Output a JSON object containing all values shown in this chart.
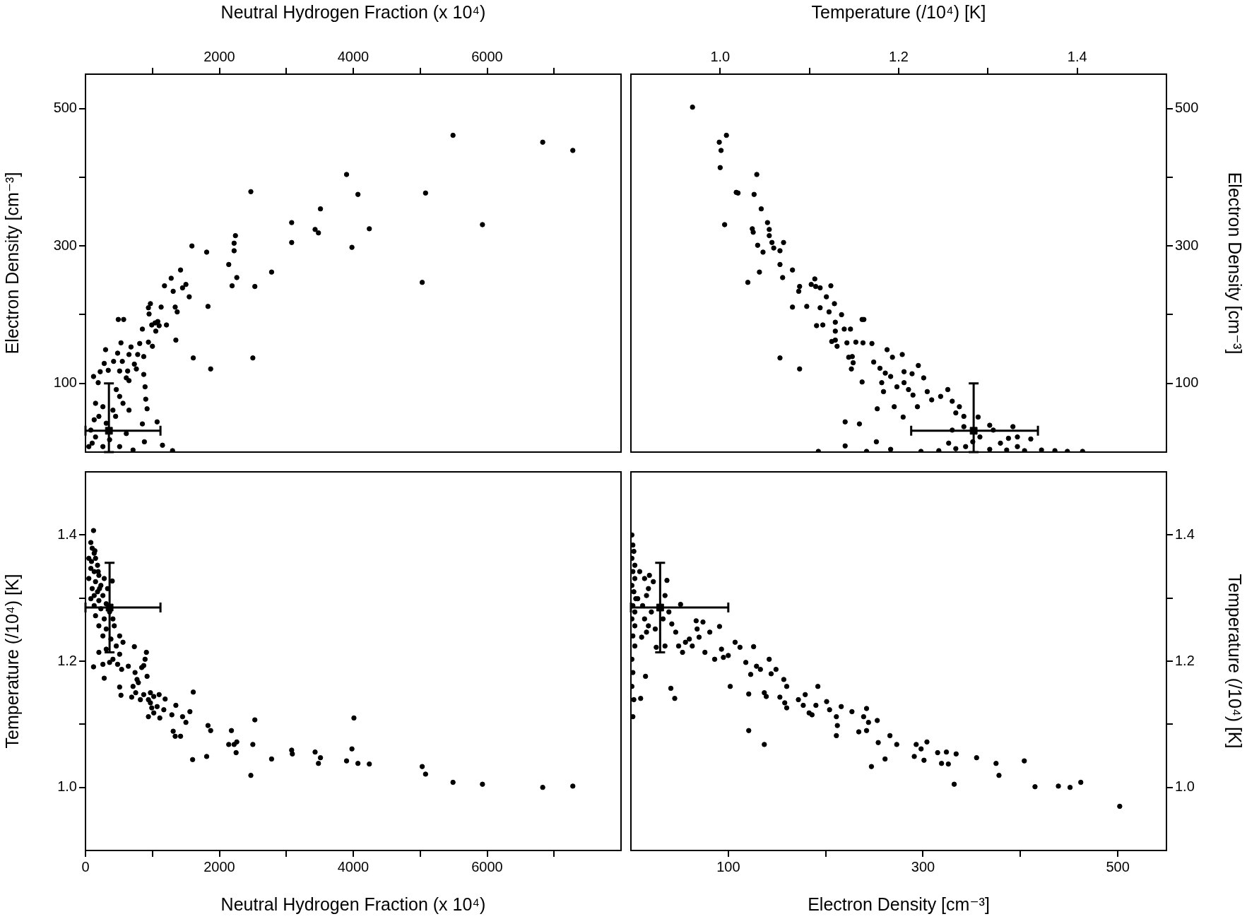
{
  "chart_data": [
    {
      "type": "scatter",
      "xlabel": "Neutral Hydrogen Fraction (x 10⁴)",
      "ylabel": "Electron Density [cm⁻³]",
      "xlim": [
        0,
        8000
      ],
      "xticks": [
        {
          "value": 1000,
          "label": null
        },
        2000,
        {
          "value": 3000,
          "label": null
        },
        4000,
        {
          "value": 5000,
          "label": null
        },
        6000,
        {
          "value": 7000,
          "label": null
        }
      ],
      "ylim": [
        0,
        550
      ],
      "yticks": [
        100,
        {
          "value": 200,
          "label": null
        },
        300,
        {
          "value": 400,
          "label": null
        },
        500
      ],
      "series": [
        {
          "color": "#000000",
          "marker": "circle",
          "x": [
            5490,
            6830,
            7280,
            3900,
            2470,
            4070,
            5080,
            3510,
            3080,
            5930,
            3430,
            3480,
            4240,
            1590,
            1810,
            2240,
            2220,
            2220,
            3080,
            3980,
            2140,
            2780,
            1420,
            1280,
            1180,
            1310,
            1450,
            1500,
            1550,
            2190,
            2260,
            2530,
            5030,
            970,
            940,
            950,
            1130,
            1340,
            1370,
            1830,
            990,
            1040,
            1080,
            1100,
            1050,
            1210,
            850,
            490,
            570,
            1350,
            810,
            940,
            1000,
            530,
            680,
            780,
            650,
            870,
            730,
            760,
            1610,
            2500,
            1870,
            550,
            480,
            420,
            300,
            280,
            220,
            340,
            510,
            630,
            610,
            650,
            870,
            890,
            900,
            920,
            650,
            850,
            1070,
            880,
            1150,
            1300,
            120,
            190,
            150,
            260,
            200,
            310,
            410,
            510,
            460,
            560,
            450,
            50,
            100,
            150,
            260,
            360,
            510,
            710,
            610,
            80,
            130
          ],
          "values": [
            461,
            451,
            439,
            404,
            379,
            375,
            377,
            354,
            334,
            331,
            324,
            319,
            325,
            300,
            291,
            315,
            304,
            293,
            305,
            298,
            273,
            262,
            265,
            253,
            242,
            234,
            239,
            244,
            226,
            242,
            254,
            241,
            247,
            216,
            210,
            201,
            211,
            211,
            204,
            212,
            185,
            188,
            190,
            184,
            176,
            185,
            179,
            193,
            193,
            163,
            158,
            160,
            154,
            159,
            153,
            142,
            142,
            139,
            128,
            121,
            137,
            137,
            121,
            132,
            144,
            132,
            149,
            129,
            117,
            119,
            118,
            118,
            108,
            104,
            113,
            95,
            77,
            63,
            61,
            41,
            44,
            15,
            10,
            2,
            110,
            101,
            71,
            66,
            52,
            42,
            61,
            81,
            91,
            71,
            52,
            8,
            13,
            22,
            8,
            18,
            8,
            3,
            27,
            32,
            47
          ]
        },
        {
          "color": "#000000",
          "marker": "square",
          "x": [
            350
          ],
          "values": [
            31
          ],
          "errors": [
            [
              0,
              100
            ]
          ],
          "xerrors": [
            [
              0,
              1120
            ]
          ]
        }
      ]
    },
    {
      "type": "scatter",
      "xlabel": "Temperature (/10⁴) [K]",
      "ylabel": "Electron Density [cm⁻³]",
      "xlim": [
        0.9,
        1.5
      ],
      "xticks": [
        {
          "value": 1.0,
          "label": "1.0"
        },
        {
          "value": 1.1,
          "label": null
        },
        1.2,
        {
          "value": 1.3,
          "label": null
        },
        1.4
      ],
      "ylim": [
        0,
        550
      ],
      "yticks": [
        100,
        {
          "value": 200,
          "label": null
        },
        300,
        {
          "value": 400,
          "label": null
        },
        500
      ],
      "series": [
        {
          "color": "#000000",
          "marker": "circle",
          "x": [
            0.969,
            0.999,
            1.001,
            1.0,
            1.007,
            1.041,
            1.005,
            1.018,
            1.02,
            1.038,
            1.046,
            1.036,
            1.037,
            1.053,
            1.055,
            1.055,
            1.042,
            1.048,
            1.058,
            1.06,
            1.067,
            1.071,
            1.067,
            1.07,
            1.044,
            1.031,
            1.081,
            1.088,
            1.089,
            1.081,
            1.097,
            1.102,
            1.106,
            1.107,
            1.112,
            1.112,
            1.108,
            1.115,
            1.119,
            1.124,
            1.128,
            1.122,
            1.129,
            1.129,
            1.136,
            1.125,
            1.129,
            1.131,
            1.139,
            1.146,
            1.142,
            1.152,
            1.144,
            1.148,
            1.149,
            1.147,
            1.159,
            1.161,
            1.16,
            1.17,
            1.159,
            1.067,
            1.089,
            1.14,
            1.156,
            1.14,
            1.176,
            1.175,
            1.172,
            1.179,
            1.185,
            1.191,
            1.181,
            1.183,
            1.187,
            1.193,
            1.204,
            1.206,
            1.198,
            1.206,
            1.211,
            1.215,
            1.222,
            1.228,
            1.195,
            1.205,
            1.216,
            1.221,
            1.232,
            1.237,
            1.247,
            1.255,
            1.26,
            1.264,
            1.268,
            1.273,
            1.289,
            1.302,
            1.306,
            1.328,
            1.323,
            1.333,
            1.348,
            1.225,
            1.245,
            1.264,
            1.275,
            1.302,
            1.321,
            1.341,
            1.36,
            1.375,
            1.389,
            1.406,
            1.11,
            1.164,
            1.191,
            1.26,
            1.273,
            1.291,
            1.283,
            1.256,
            1.314,
            1.333
          ],
          "values": [
            502,
            451,
            439,
            414,
            461,
            404,
            331,
            378,
            377,
            375,
            354,
            325,
            320,
            334,
            324,
            315,
            301,
            291,
            305,
            297,
            293,
            305,
            273,
            254,
            262,
            247,
            265,
            234,
            241,
            211,
            212,
            244,
            252,
            241,
            239,
            210,
            184,
            185,
            226,
            242,
            216,
            204,
            189,
            176,
            200,
            161,
            163,
            154,
            179,
            179,
            159,
            160,
            138,
            139,
            130,
            121,
            193,
            193,
            159,
            158,
            102,
            137,
            121,
            44,
            41,
            9,
            63,
            15,
            131,
            122,
            115,
            110,
            101,
            88,
            149,
            138,
            142,
            117,
            95,
            101,
            91,
            114,
            126,
            108,
            66,
            51,
            83,
            66,
            88,
            76,
            81,
            91,
            74,
            57,
            66,
            52,
            51,
            39,
            32,
            37,
            20,
            22,
            19,
            1,
            2,
            5,
            8,
            4,
            3,
            2,
            3,
            2,
            1,
            1,
            1,
            1,
            4,
            32,
            37,
            22,
            15,
            13,
            13,
            8
          ]
        },
        {
          "color": "#000000",
          "marker": "square",
          "x": [
            1.284
          ],
          "values": [
            31
          ],
          "errors": [
            [
              0,
              100
            ]
          ],
          "xerrors": [
            [
              1.214,
              1.356
            ]
          ]
        }
      ]
    },
    {
      "type": "scatter",
      "xlabel": "Neutral Hydrogen Fraction (x 10⁴)",
      "ylabel": "Temperature (/10⁴) [K]",
      "xlim": [
        0,
        8000
      ],
      "xticks": [
        0,
        {
          "value": 1000,
          "label": null
        },
        2000,
        {
          "value": 3000,
          "label": null
        },
        4000,
        {
          "value": 5000,
          "label": null
        },
        6000,
        {
          "value": 7000,
          "label": null
        }
      ],
      "ylim": [
        0.9,
        1.5
      ],
      "yticks": [
        {
          "value": 1.0,
          "label": "1.0"
        },
        {
          "value": 1.1,
          "label": null
        },
        1.2,
        {
          "value": 1.3,
          "label": null
        },
        1.4
      ],
      "series": [
        {
          "color": "#000000",
          "marker": "circle",
          "x": [
            120,
            80,
            100,
            130,
            150,
            50,
            180,
            80,
            130,
            200,
            50,
            150,
            230,
            100,
            180,
            260,
            80,
            200,
            310,
            130,
            230,
            360,
            150,
            280,
            410,
            200,
            310,
            430,
            260,
            380,
            510,
            90,
            140,
            190,
            210,
            130,
            280,
            330,
            400,
            120,
            280,
            200,
            310,
            460,
            560,
            730,
            510,
            410,
            260,
            360,
            480,
            540,
            640,
            740,
            870,
            890,
            910,
            840,
            920,
            770,
            790,
            710,
            510,
            530,
            690,
            750,
            820,
            870,
            970,
            940,
            1020,
            1100,
            1190,
            970,
            990,
            1070,
            1020,
            940,
            1110,
            1170,
            1290,
            1350,
            1450,
            1500,
            1560,
            1610,
            1310,
            1340,
            1420,
            1830,
            1870,
            1600,
            1810,
            2140,
            2180,
            2220,
            2250,
            2260,
            2500,
            2530,
            2470,
            2780,
            3080,
            3090,
            3430,
            3480,
            3510,
            3900,
            4010,
            3980,
            4070,
            4240,
            5030,
            5080,
            5490,
            5930,
            6830,
            7280
          ],
          "values": [
            1.407,
            1.388,
            1.379,
            1.371,
            1.363,
            1.363,
            1.352,
            1.347,
            1.342,
            1.336,
            1.331,
            1.326,
            1.32,
            1.315,
            1.31,
            1.304,
            1.299,
            1.296,
            1.291,
            1.288,
            1.283,
            1.278,
            1.272,
            1.267,
            1.267,
            1.256,
            1.251,
            1.256,
            1.24,
            1.235,
            1.24,
            1.358,
            1.375,
            1.342,
            1.315,
            1.304,
            1.331,
            1.315,
            1.327,
            1.191,
            1.173,
            1.214,
            1.219,
            1.224,
            1.23,
            1.223,
            1.211,
            1.203,
            1.195,
            1.198,
            1.195,
            1.187,
            1.192,
            1.182,
            1.193,
            1.203,
            1.214,
            1.19,
            1.176,
            1.171,
            1.166,
            1.16,
            1.159,
            1.146,
            1.143,
            1.15,
            1.139,
            1.147,
            1.15,
            1.139,
            1.144,
            1.147,
            1.14,
            1.134,
            1.126,
            1.128,
            1.118,
            1.112,
            1.11,
            1.123,
            1.115,
            1.13,
            1.112,
            1.103,
            1.12,
            1.151,
            1.089,
            1.081,
            1.081,
            1.098,
            1.09,
            1.044,
            1.049,
            1.068,
            1.09,
            1.068,
            1.055,
            1.072,
            1.068,
            1.107,
            1.019,
            1.045,
            1.059,
            1.053,
            1.056,
            1.038,
            1.047,
            1.042,
            1.11,
            1.061,
            1.038,
            1.037,
            1.033,
            1.021,
            1.008,
            1.005,
            1.0,
            1.002
          ]
        },
        {
          "color": "#000000",
          "marker": "square",
          "x": [
            360
          ],
          "values": [
            1.285
          ],
          "errors": [
            [
              1.214,
              1.356
            ]
          ],
          "xerrors": [
            [
              0,
              1120
            ]
          ]
        }
      ]
    },
    {
      "type": "scatter",
      "xlabel": "Electron Density [cm⁻³]",
      "ylabel": "Temperature (/10⁴) [K]",
      "xlim": [
        0,
        550
      ],
      "xticks": [
        100,
        {
          "value": 200,
          "label": null
        },
        300,
        {
          "value": 400,
          "label": null
        },
        500
      ],
      "ylim": [
        0.9,
        1.5
      ],
      "yticks": [
        {
          "value": 1.0,
          "label": "1.0"
        },
        {
          "value": 1.1,
          "label": null
        },
        1.2,
        {
          "value": 1.3,
          "label": null
        },
        1.4
      ],
      "series": [
        {
          "color": "#000000",
          "marker": "circle",
          "x": [
            1,
            2,
            3,
            1,
            4,
            2,
            4,
            1,
            3,
            5,
            2,
            4,
            1,
            4,
            2,
            4,
            1,
            2,
            1,
            3,
            2,
            9,
            14,
            19,
            18,
            16,
            7,
            23,
            12,
            21,
            14,
            18,
            25,
            37,
            35,
            39,
            33,
            26,
            35,
            16,
            11,
            15,
            10,
            41,
            45,
            51,
            42,
            46,
            49,
            53,
            56,
            60,
            63,
            67,
            68,
            74,
            70,
            76,
            81,
            86,
            91,
            93,
            95,
            100,
            102,
            107,
            112,
            118,
            123,
            126,
            121,
            129,
            133,
            142,
            144,
            149,
            137,
            139,
            121,
            137,
            153,
            157,
            160,
            158,
            160,
            172,
            177,
            179,
            183,
            186,
            190,
            192,
            201,
            204,
            211,
            212,
            211,
            216,
            227,
            234,
            239,
            242,
            242,
            244,
            247,
            253,
            254,
            261,
            266,
            273,
            291,
            293,
            298,
            304,
            301,
            315,
            319,
            324,
            326,
            332,
            334,
            355,
            375,
            378,
            404,
            415,
            439,
            451,
            462,
            502
          ],
          "values": [
            1.4,
            1.384,
            1.374,
            1.363,
            1.352,
            1.342,
            1.331,
            1.32,
            1.31,
            1.299,
            1.288,
            1.278,
            1.267,
            1.256,
            1.24,
            1.224,
            1.203,
            1.182,
            1.16,
            1.139,
            1.112,
            1.342,
            1.331,
            1.336,
            1.315,
            1.304,
            1.299,
            1.326,
            1.288,
            1.278,
            1.267,
            1.256,
            1.251,
            1.328,
            1.304,
            1.278,
            1.267,
            1.222,
            1.224,
            1.246,
            1.238,
            1.176,
            1.141,
            1.157,
            1.141,
            1.29,
            1.259,
            1.246,
            1.224,
            1.214,
            1.23,
            1.235,
            1.224,
            1.264,
            1.251,
            1.262,
            1.238,
            1.214,
            1.246,
            1.203,
            1.255,
            1.219,
            1.206,
            1.209,
            1.16,
            1.23,
            1.222,
            1.198,
            1.179,
            1.223,
            1.148,
            1.192,
            1.187,
            1.203,
            1.18,
            1.187,
            1.15,
            1.144,
            1.09,
            1.068,
            1.143,
            1.171,
            1.16,
            1.134,
            1.126,
            1.139,
            1.13,
            1.147,
            1.118,
            1.115,
            1.13,
            1.16,
            1.136,
            1.123,
            1.112,
            1.098,
            1.082,
            1.128,
            1.12,
            1.088,
            1.112,
            1.125,
            1.09,
            1.103,
            1.033,
            1.106,
            1.071,
            1.045,
            1.082,
            1.068,
            1.049,
            1.068,
            1.061,
            1.072,
            1.043,
            1.055,
            1.038,
            1.056,
            1.037,
            1.005,
            1.053,
            1.047,
            1.038,
            1.019,
            1.042,
            1.001,
            1.002,
            1.0,
            1.008,
            0.97
          ]
        },
        {
          "color": "#000000",
          "marker": "square",
          "x": [
            30
          ],
          "values": [
            1.285
          ],
          "errors": [
            [
              1.214,
              1.356
            ]
          ],
          "xerrors": [
            [
              0,
              100
            ]
          ]
        }
      ]
    }
  ]
}
